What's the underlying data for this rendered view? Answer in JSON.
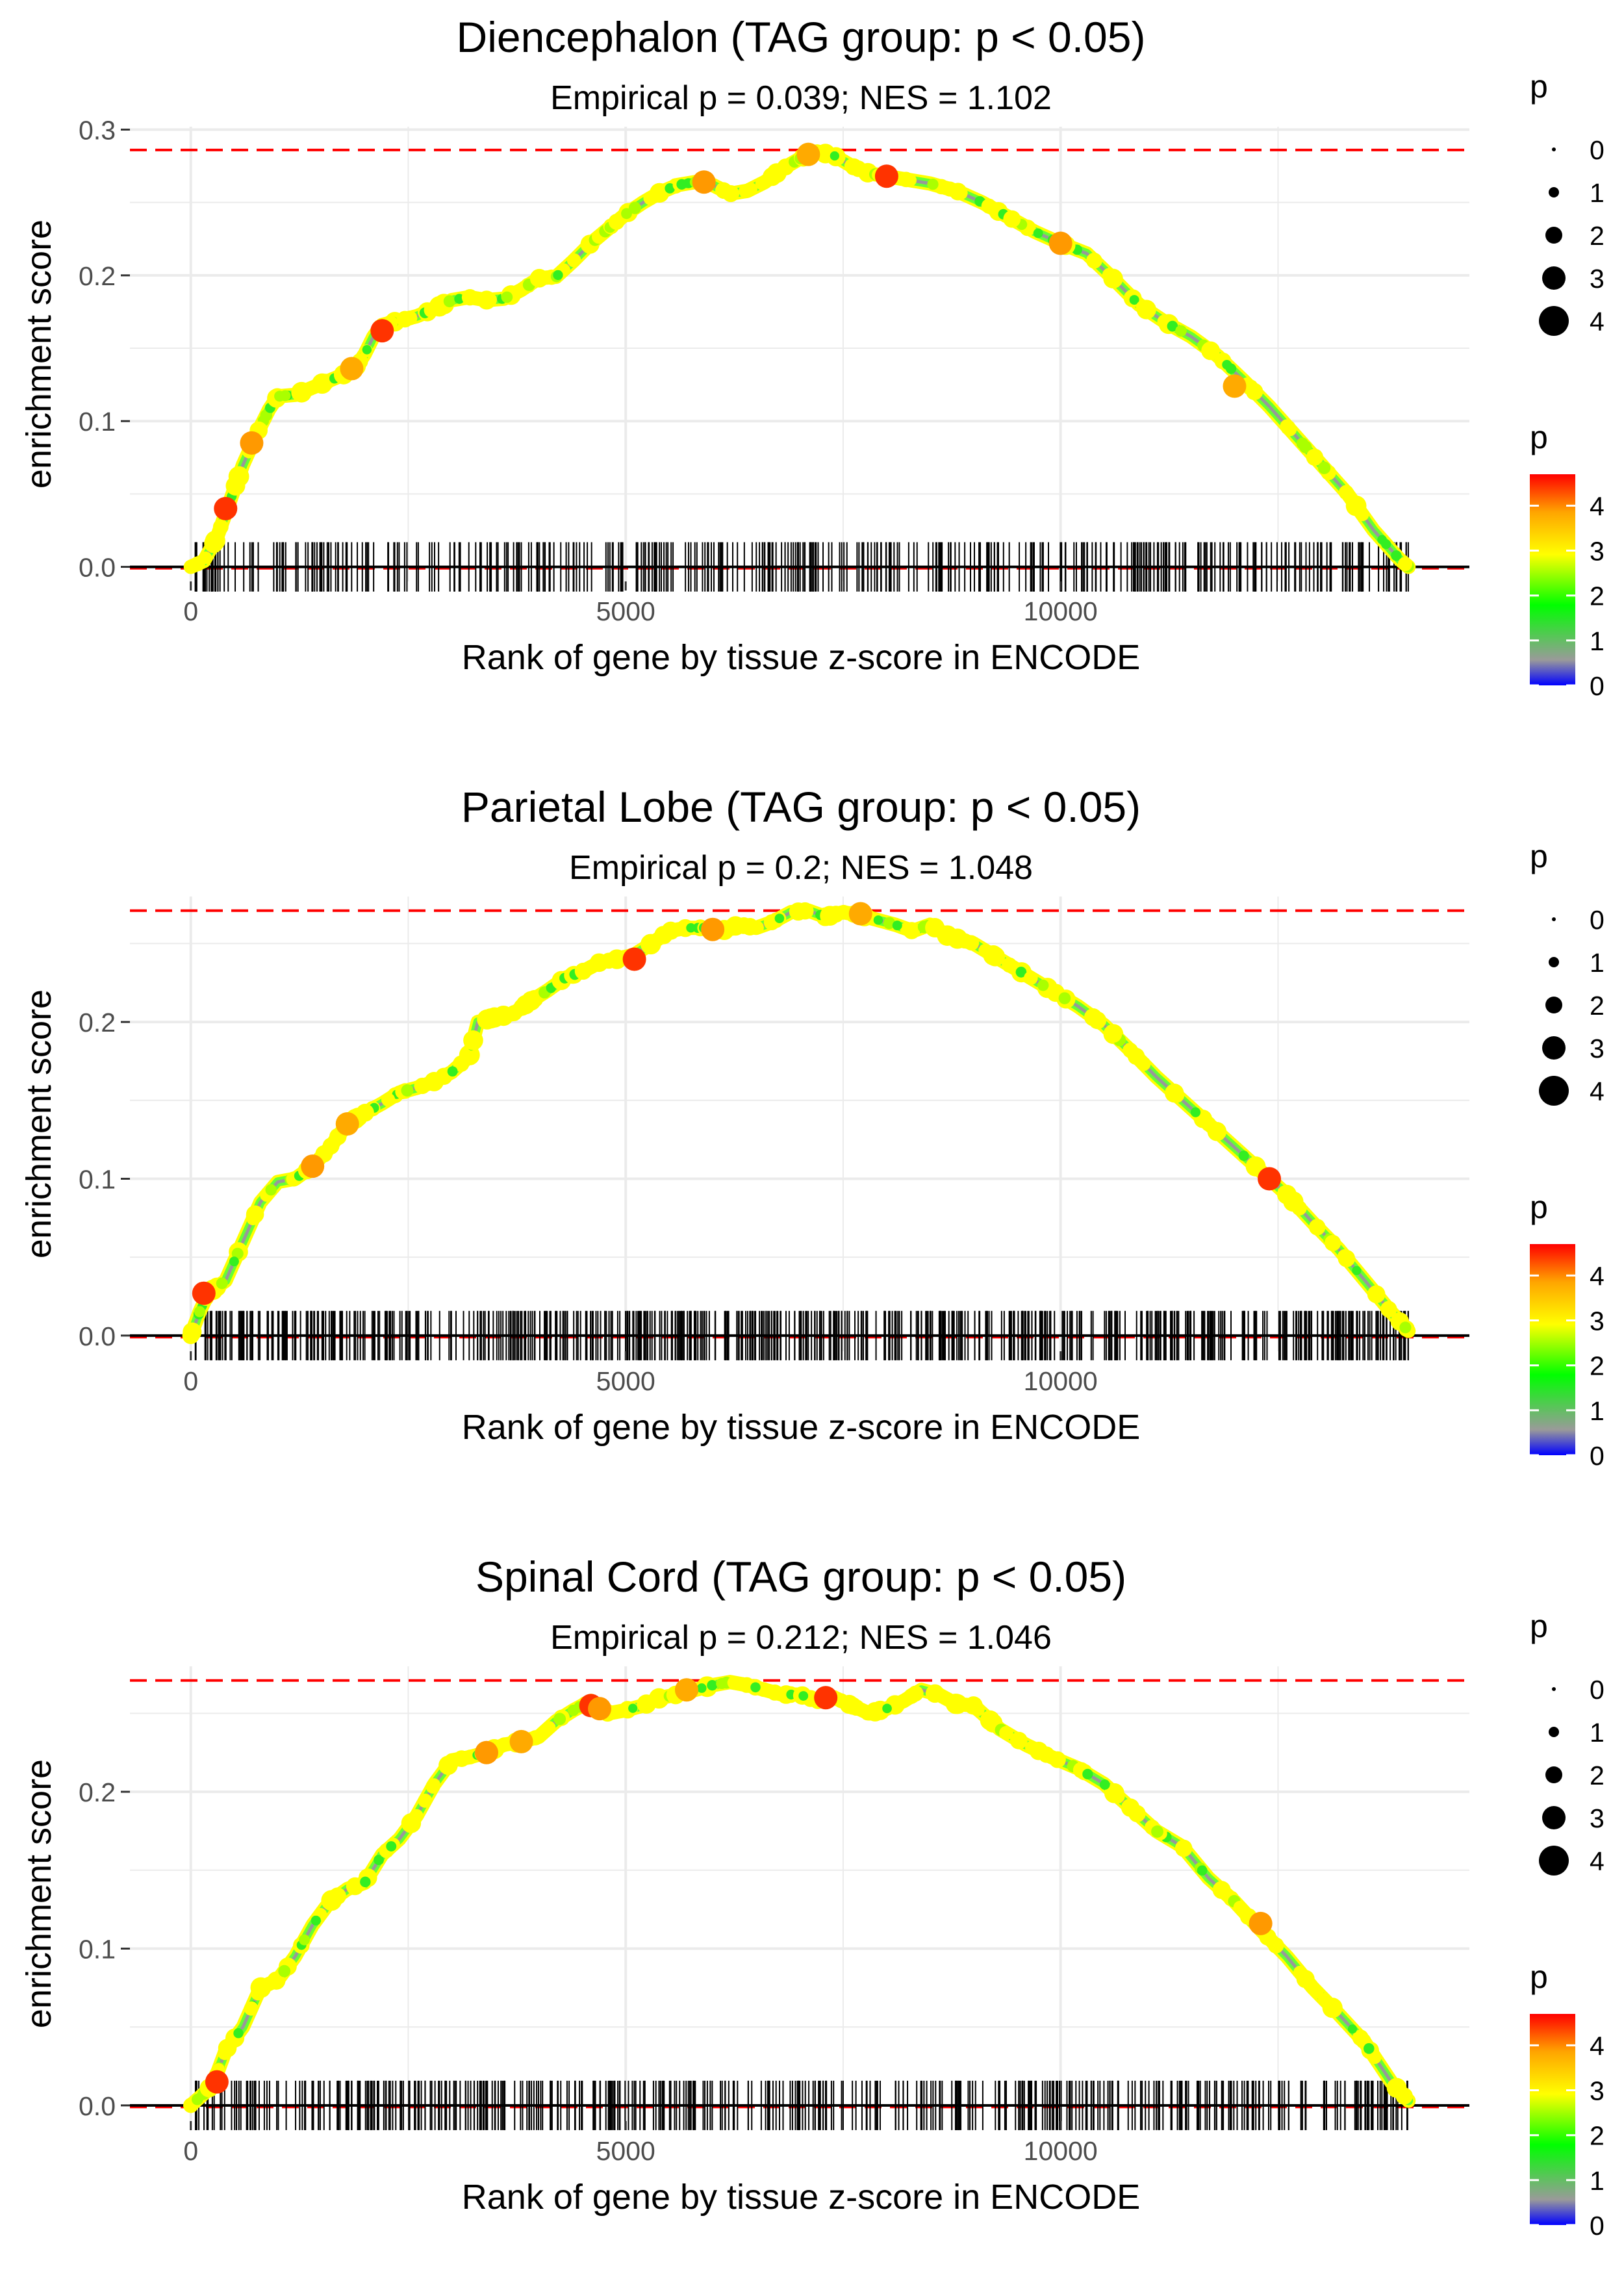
{
  "chart_data": [
    {
      "type": "line",
      "title": "Diencephalon (TAG group: p < 0.05)",
      "subtitle": "Empirical p = 0.039; NES = 1.102",
      "xlabel": "Rank of gene by tissue z-score in ENCODE",
      "ylabel": "enrichment score",
      "xlim": [
        -700,
        14700
      ],
      "ylim": [
        -0.01,
        0.302
      ],
      "x_ticks": [
        0,
        5000,
        10000
      ],
      "x_tick_labels": [
        "0",
        "5000",
        "10000"
      ],
      "y_ticks": [
        0.0,
        0.1,
        0.2,
        0.3
      ],
      "y_tick_labels": [
        "0.0",
        "0.1",
        "0.2",
        "0.3"
      ],
      "max_es": 0.286,
      "curve": [
        [
          0,
          0
        ],
        [
          150,
          0.004
        ],
        [
          300,
          0.02
        ],
        [
          450,
          0.045
        ],
        [
          600,
          0.07
        ],
        [
          750,
          0.09
        ],
        [
          900,
          0.108
        ],
        [
          1000,
          0.117
        ],
        [
          1200,
          0.118
        ],
        [
          1400,
          0.123
        ],
        [
          1600,
          0.128
        ],
        [
          1800,
          0.133
        ],
        [
          1900,
          0.137
        ],
        [
          2000,
          0.146
        ],
        [
          2100,
          0.158
        ],
        [
          2200,
          0.166
        ],
        [
          2400,
          0.169
        ],
        [
          2600,
          0.172
        ],
        [
          2800,
          0.177
        ],
        [
          3000,
          0.183
        ],
        [
          3200,
          0.185
        ],
        [
          3400,
          0.183
        ],
        [
          3600,
          0.184
        ],
        [
          3800,
          0.19
        ],
        [
          4000,
          0.198
        ],
        [
          4200,
          0.199
        ],
        [
          4400,
          0.21
        ],
        [
          4600,
          0.222
        ],
        [
          4800,
          0.232
        ],
        [
          5000,
          0.242
        ],
        [
          5200,
          0.25
        ],
        [
          5400,
          0.257
        ],
        [
          5600,
          0.262
        ],
        [
          5800,
          0.264
        ],
        [
          6000,
          0.262
        ],
        [
          6200,
          0.256
        ],
        [
          6400,
          0.258
        ],
        [
          6600,
          0.264
        ],
        [
          6800,
          0.273
        ],
        [
          7000,
          0.28
        ],
        [
          7200,
          0.285
        ],
        [
          7400,
          0.282
        ],
        [
          7600,
          0.275
        ],
        [
          7800,
          0.27
        ],
        [
          8000,
          0.268
        ],
        [
          8200,
          0.266
        ],
        [
          8500,
          0.263
        ],
        [
          8800,
          0.258
        ],
        [
          9100,
          0.25
        ],
        [
          9400,
          0.24
        ],
        [
          9700,
          0.23
        ],
        [
          10000,
          0.222
        ],
        [
          10300,
          0.215
        ],
        [
          10600,
          0.198
        ],
        [
          10900,
          0.18
        ],
        [
          11200,
          0.168
        ],
        [
          11500,
          0.158
        ],
        [
          11800,
          0.145
        ],
        [
          12100,
          0.128
        ],
        [
          12400,
          0.11
        ],
        [
          12700,
          0.09
        ],
        [
          13000,
          0.07
        ],
        [
          13300,
          0.05
        ],
        [
          13600,
          0.025
        ],
        [
          13900,
          0.005
        ],
        [
          14000,
          0
        ]
      ],
      "highlights": [
        [
          400,
          0.04
        ],
        [
          700,
          0.085
        ],
        [
          1850,
          0.136
        ],
        [
          2200,
          0.162
        ],
        [
          5900,
          0.264
        ],
        [
          7100,
          0.283
        ],
        [
          8000,
          0.268
        ],
        [
          10000,
          0.222
        ],
        [
          12000,
          0.124
        ]
      ],
      "ticks_seed": 11,
      "ticks_count": 420,
      "size_legend": {
        "title": "p",
        "labels": [
          "0",
          "1",
          "2",
          "3",
          "4"
        ]
      },
      "color_legend": {
        "title": "p",
        "labels": [
          "4",
          "3",
          "2",
          "1",
          "0"
        ]
      }
    },
    {
      "type": "line",
      "title": "Parietal Lobe (TAG group: p < 0.05)",
      "subtitle": "Empirical p = 0.2; NES = 1.048",
      "xlabel": "Rank of gene by tissue z-score in ENCODE",
      "ylabel": "enrichment score",
      "xlim": [
        -700,
        14700
      ],
      "ylim": [
        -0.01,
        0.28
      ],
      "x_ticks": [
        0,
        5000,
        10000
      ],
      "x_tick_labels": [
        "0",
        "5000",
        "10000"
      ],
      "y_ticks": [
        0.0,
        0.1,
        0.2
      ],
      "y_tick_labels": [
        "0.0",
        "0.1",
        "0.2"
      ],
      "max_es": 0.271,
      "curve": [
        [
          0,
          0
        ],
        [
          100,
          0.015
        ],
        [
          200,
          0.027
        ],
        [
          400,
          0.035
        ],
        [
          600,
          0.06
        ],
        [
          800,
          0.085
        ],
        [
          1000,
          0.098
        ],
        [
          1200,
          0.1
        ],
        [
          1400,
          0.108
        ],
        [
          1600,
          0.12
        ],
        [
          1800,
          0.135
        ],
        [
          2000,
          0.142
        ],
        [
          2200,
          0.148
        ],
        [
          2400,
          0.155
        ],
        [
          2600,
          0.158
        ],
        [
          2800,
          0.162
        ],
        [
          3000,
          0.168
        ],
        [
          3200,
          0.178
        ],
        [
          3300,
          0.2
        ],
        [
          3500,
          0.203
        ],
        [
          3700,
          0.205
        ],
        [
          3900,
          0.213
        ],
        [
          4100,
          0.22
        ],
        [
          4300,
          0.228
        ],
        [
          4500,
          0.232
        ],
        [
          4700,
          0.238
        ],
        [
          4900,
          0.24
        ],
        [
          5100,
          0.243
        ],
        [
          5300,
          0.25
        ],
        [
          5500,
          0.258
        ],
        [
          5700,
          0.26
        ],
        [
          5900,
          0.26
        ],
        [
          6100,
          0.258
        ],
        [
          6300,
          0.262
        ],
        [
          6500,
          0.26
        ],
        [
          6700,
          0.264
        ],
        [
          6900,
          0.27
        ],
        [
          7100,
          0.271
        ],
        [
          7300,
          0.267
        ],
        [
          7500,
          0.27
        ],
        [
          7700,
          0.268
        ],
        [
          7900,
          0.265
        ],
        [
          8100,
          0.262
        ],
        [
          8300,
          0.258
        ],
        [
          8500,
          0.262
        ],
        [
          8700,
          0.255
        ],
        [
          9000,
          0.25
        ],
        [
          9300,
          0.24
        ],
        [
          9600,
          0.23
        ],
        [
          9900,
          0.22
        ],
        [
          10200,
          0.21
        ],
        [
          10500,
          0.198
        ],
        [
          10800,
          0.182
        ],
        [
          11100,
          0.165
        ],
        [
          11400,
          0.15
        ],
        [
          11700,
          0.135
        ],
        [
          12000,
          0.12
        ],
        [
          12300,
          0.105
        ],
        [
          12600,
          0.09
        ],
        [
          12900,
          0.072
        ],
        [
          13200,
          0.055
        ],
        [
          13500,
          0.035
        ],
        [
          13800,
          0.015
        ],
        [
          14000,
          0.003
        ]
      ],
      "highlights": [
        [
          150,
          0.027
        ],
        [
          1400,
          0.108
        ],
        [
          1800,
          0.135
        ],
        [
          5100,
          0.24
        ],
        [
          6000,
          0.259
        ],
        [
          7700,
          0.269
        ],
        [
          12400,
          0.1
        ]
      ],
      "ticks_seed": 23,
      "ticks_count": 620,
      "size_legend": {
        "title": "p",
        "labels": [
          "0",
          "1",
          "2",
          "3",
          "4"
        ]
      },
      "color_legend": {
        "title": "p",
        "labels": [
          "4",
          "3",
          "2",
          "1",
          "0"
        ]
      }
    },
    {
      "type": "line",
      "title": "Spinal Cord (TAG group: p < 0.05)",
      "subtitle": "Empirical p = 0.212; NES = 1.046",
      "xlabel": "Rank of gene by tissue z-score in ENCODE",
      "ylabel": "enrichment score",
      "xlim": [
        -700,
        14700
      ],
      "ylim": [
        -0.01,
        0.28
      ],
      "x_ticks": [
        0,
        5000,
        10000
      ],
      "x_tick_labels": [
        "0",
        "5000",
        "10000"
      ],
      "y_ticks": [
        0.0,
        0.1,
        0.2
      ],
      "y_tick_labels": [
        "0.0",
        "0.1",
        "0.2"
      ],
      "max_es": 0.271,
      "curve": [
        [
          0,
          0
        ],
        [
          200,
          0.01
        ],
        [
          300,
          0.02
        ],
        [
          400,
          0.035
        ],
        [
          600,
          0.05
        ],
        [
          800,
          0.075
        ],
        [
          1000,
          0.08
        ],
        [
          1200,
          0.095
        ],
        [
          1400,
          0.115
        ],
        [
          1600,
          0.13
        ],
        [
          1800,
          0.138
        ],
        [
          2000,
          0.142
        ],
        [
          2200,
          0.16
        ],
        [
          2400,
          0.17
        ],
        [
          2600,
          0.185
        ],
        [
          2800,
          0.205
        ],
        [
          3000,
          0.22
        ],
        [
          3200,
          0.222
        ],
        [
          3400,
          0.225
        ],
        [
          3600,
          0.23
        ],
        [
          3800,
          0.232
        ],
        [
          4000,
          0.235
        ],
        [
          4200,
          0.245
        ],
        [
          4400,
          0.252
        ],
        [
          4600,
          0.258
        ],
        [
          4800,
          0.25
        ],
        [
          5000,
          0.252
        ],
        [
          5200,
          0.255
        ],
        [
          5400,
          0.26
        ],
        [
          5600,
          0.262
        ],
        [
          5800,
          0.265
        ],
        [
          6000,
          0.268
        ],
        [
          6200,
          0.27
        ],
        [
          6400,
          0.268
        ],
        [
          6600,
          0.265
        ],
        [
          6800,
          0.262
        ],
        [
          7000,
          0.262
        ],
        [
          7200,
          0.258
        ],
        [
          7400,
          0.26
        ],
        [
          7600,
          0.255
        ],
        [
          7800,
          0.25
        ],
        [
          8000,
          0.253
        ],
        [
          8200,
          0.258
        ],
        [
          8400,
          0.265
        ],
        [
          8600,
          0.262
        ],
        [
          8800,
          0.256
        ],
        [
          9000,
          0.255
        ],
        [
          9300,
          0.24
        ],
        [
          9600,
          0.23
        ],
        [
          9900,
          0.222
        ],
        [
          10200,
          0.215
        ],
        [
          10500,
          0.205
        ],
        [
          10800,
          0.19
        ],
        [
          11100,
          0.175
        ],
        [
          11400,
          0.165
        ],
        [
          11700,
          0.145
        ],
        [
          12000,
          0.13
        ],
        [
          12300,
          0.112
        ],
        [
          12600,
          0.095
        ],
        [
          12900,
          0.075
        ],
        [
          13200,
          0.058
        ],
        [
          13500,
          0.04
        ],
        [
          13800,
          0.015
        ],
        [
          14000,
          0.003
        ]
      ],
      "highlights": [
        [
          300,
          0.015
        ],
        [
          3400,
          0.225
        ],
        [
          3800,
          0.232
        ],
        [
          4600,
          0.255
        ],
        [
          4700,
          0.253
        ],
        [
          5700,
          0.265
        ],
        [
          7300,
          0.26
        ],
        [
          12300,
          0.116
        ]
      ],
      "ticks_seed": 37,
      "ticks_count": 480,
      "size_legend": {
        "title": "p",
        "labels": [
          "0",
          "1",
          "2",
          "3",
          "4"
        ]
      },
      "color_legend": {
        "title": "p",
        "labels": [
          "4",
          "3",
          "2",
          "1",
          "0"
        ]
      }
    }
  ]
}
